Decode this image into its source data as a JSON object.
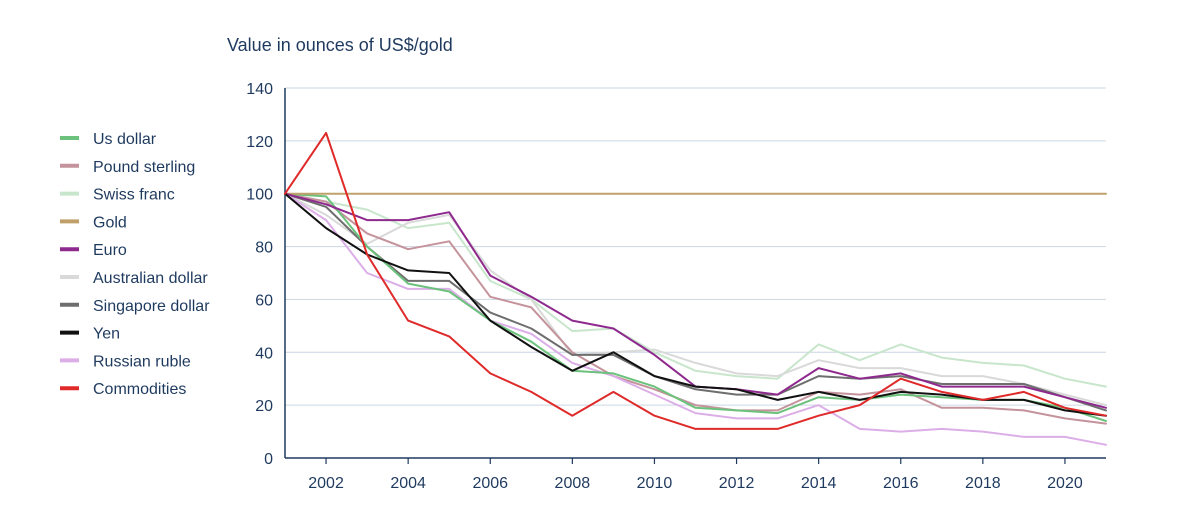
{
  "chart_data": {
    "type": "line",
    "title": "",
    "ylabel": "Value in ounces of US$/gold",
    "xlabel": "",
    "xlim": [
      2001,
      2021
    ],
    "ylim": [
      0,
      140
    ],
    "y_ticks": [
      0,
      20,
      40,
      60,
      80,
      100,
      120,
      140
    ],
    "x_ticks": [
      2002,
      2004,
      2006,
      2008,
      2010,
      2012,
      2014,
      2016,
      2018,
      2020
    ],
    "grid": "horizontal",
    "legend_position": "left",
    "x": [
      2001,
      2002,
      2003,
      2004,
      2005,
      2006,
      2007,
      2008,
      2009,
      2010,
      2011,
      2012,
      2013,
      2014,
      2015,
      2016,
      2017,
      2018,
      2019,
      2020,
      2021
    ],
    "series": [
      {
        "name": "Us dollar",
        "color": "#6cc27c",
        "values": [
          100,
          99,
          80,
          66,
          63,
          52,
          44,
          33,
          32,
          27,
          19,
          18,
          17,
          23,
          22,
          24,
          23,
          22,
          22,
          19,
          14
        ]
      },
      {
        "name": "Pound sterling",
        "color": "#c4939b",
        "values": [
          100,
          97,
          85,
          79,
          82,
          61,
          57,
          40,
          31,
          26,
          20,
          18,
          18,
          25,
          24,
          26,
          19,
          19,
          18,
          15,
          13
        ]
      },
      {
        "name": "Swiss franc",
        "color": "#c8e6cc",
        "values": [
          100,
          97,
          94,
          87,
          89,
          67,
          60,
          48,
          49,
          40,
          33,
          31,
          30,
          43,
          37,
          43,
          38,
          36,
          35,
          30,
          27
        ]
      },
      {
        "name": "Gold",
        "color": "#c0a06a",
        "values": [
          100,
          100,
          100,
          100,
          100,
          100,
          100,
          100,
          100,
          100,
          100,
          100,
          100,
          100,
          100,
          100,
          100,
          100,
          100,
          100,
          100
        ]
      },
      {
        "name": "Euro",
        "color": "#8e2a8e",
        "values": [
          100,
          96,
          90,
          90,
          93,
          69,
          61,
          52,
          49,
          39,
          27,
          26,
          24,
          34,
          30,
          32,
          27,
          27,
          27,
          23,
          19
        ]
      },
      {
        "name": "Australian dollar",
        "color": "#d9d9d9",
        "values": [
          100,
          92,
          81,
          89,
          92,
          71,
          60,
          39,
          40,
          41,
          36,
          32,
          31,
          37,
          34,
          34,
          31,
          31,
          28,
          24,
          20
        ]
      },
      {
        "name": "Singapore dollar",
        "color": "#6e6e6e",
        "values": [
          100,
          95,
          80,
          67,
          67,
          55,
          49,
          39,
          39,
          31,
          26,
          24,
          24,
          31,
          30,
          31,
          28,
          28,
          28,
          23,
          18
        ]
      },
      {
        "name": "Yen",
        "color": "#111111",
        "values": [
          100,
          87,
          77,
          71,
          70,
          52,
          42,
          33,
          40,
          31,
          27,
          26,
          22,
          25,
          22,
          25,
          24,
          22,
          22,
          18,
          16
        ]
      },
      {
        "name": "Russian ruble",
        "color": "#dcaee8",
        "values": [
          100,
          90,
          70,
          64,
          64,
          52,
          47,
          36,
          31,
          24,
          17,
          15,
          15,
          20,
          11,
          10,
          11,
          10,
          8,
          8,
          5
        ]
      },
      {
        "name": "Commodities",
        "color": "#e02a2a",
        "values": [
          100,
          123,
          77,
          52,
          46,
          32,
          25,
          16,
          25,
          16,
          11,
          11,
          11,
          16,
          20,
          30,
          25,
          22,
          25,
          19,
          16
        ]
      }
    ]
  }
}
